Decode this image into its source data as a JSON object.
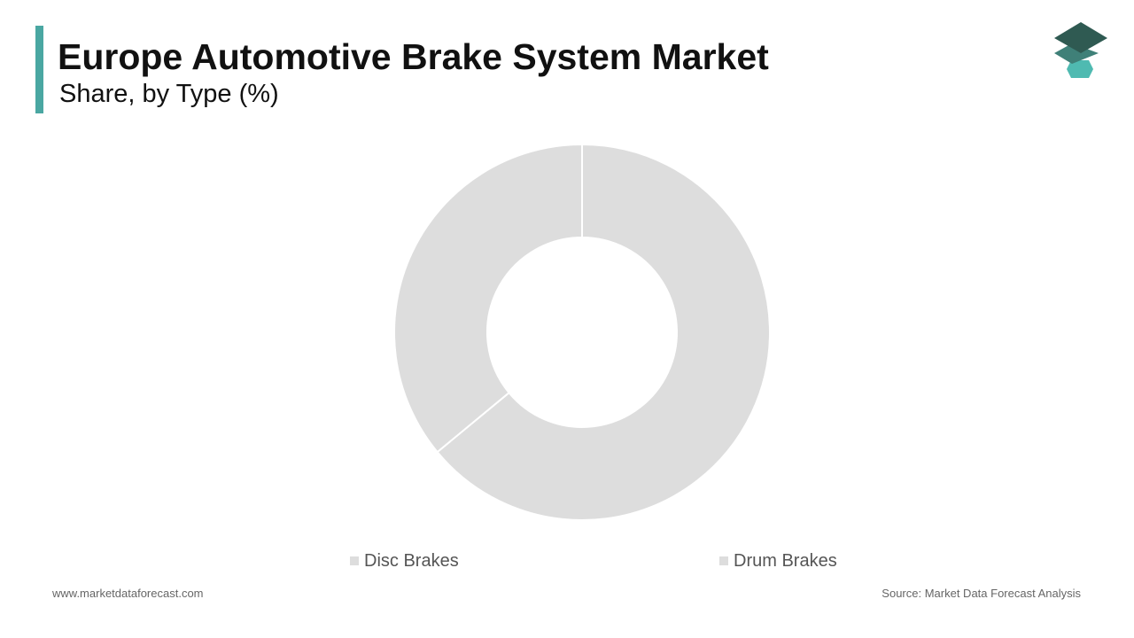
{
  "header": {
    "title": "Europe Automotive Brake System Market",
    "subtitle": "Share, by Type (%)"
  },
  "colors": {
    "accent": "#4aa7a2",
    "slice": "#dddddd",
    "slice_border": "#ffffff",
    "logo_top": "#2f5a52",
    "logo_mid": "#3f8078",
    "logo_bottom": "#4fbab1"
  },
  "chart_data": {
    "type": "pie",
    "donut": true,
    "title": "",
    "labels": [
      "Disc Brakes",
      "Drum Brakes"
    ],
    "values": [
      64,
      36
    ],
    "legend_position": "bottom"
  },
  "footer": {
    "website": "www.marketdataforecast.com",
    "source": "Source: Market Data Forecast Analysis"
  }
}
